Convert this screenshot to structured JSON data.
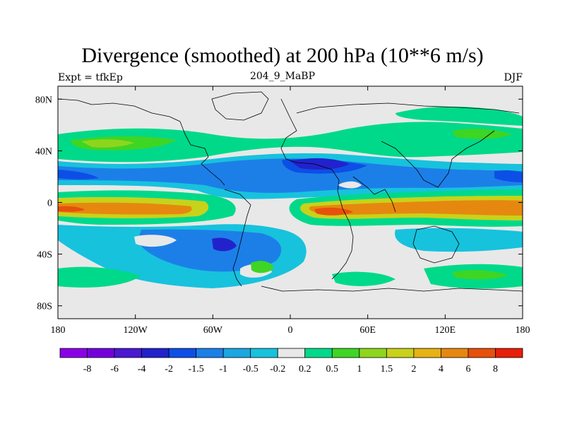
{
  "title": "Divergence (smoothed) at 200 hPa (10**6 m/s)",
  "subtitle_left": "Expt = tfkEp",
  "subtitle_center": "204_9_MaBP",
  "subtitle_right": "DJF",
  "axes": {
    "x_ticks": [
      "180",
      "120W",
      "60W",
      "0",
      "60E",
      "120E",
      "180"
    ],
    "y_ticks": [
      "80N",
      "40N",
      "0",
      "40S",
      "80S"
    ],
    "lon_range": [
      -180,
      180
    ],
    "lat_range": [
      -90,
      90
    ]
  },
  "colorbar": {
    "labels": [
      "-8",
      "-6",
      "-4",
      "-2",
      "-1.5",
      "-1",
      "-0.5",
      "-0.2",
      "0.2",
      "0.5",
      "1",
      "1.5",
      "2",
      "4",
      "6",
      "8"
    ],
    "colors": [
      "#8a00e6",
      "#7300dc",
      "#4b18d2",
      "#2222cc",
      "#0d4fe6",
      "#1c7fe8",
      "#1aa6e0",
      "#17c2dd",
      "#e8e8e8",
      "#00d98a",
      "#3ed524",
      "#8ed61e",
      "#c8d21a",
      "#e6b214",
      "#e6880f",
      "#e6500c",
      "#e61e0a"
    ]
  },
  "colors": {
    "neutral": "#e8e8e8",
    "coast": "#000000",
    "frame": "#000000"
  }
}
